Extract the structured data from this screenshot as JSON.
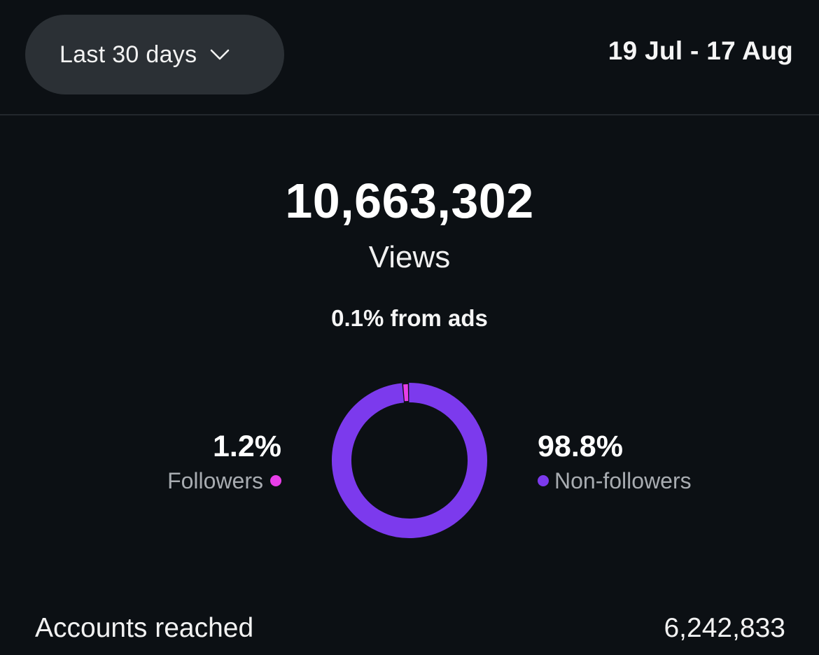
{
  "header": {
    "range_selector": "Last 30 days",
    "date_range": "19 Jul - 17 Aug"
  },
  "summary": {
    "views_total": "10,663,302",
    "views_label": "Views",
    "ads_note": "0.1% from ads"
  },
  "breakdown": {
    "followers": {
      "percent": "1.2%",
      "label": "Followers",
      "color": "#e83ee8"
    },
    "non_followers": {
      "percent": "98.8%",
      "label": "Non-followers",
      "color": "#7c3aed"
    }
  },
  "chart_data": {
    "type": "pie",
    "categories": [
      "Followers",
      "Non-followers"
    ],
    "values": [
      1.2,
      98.8
    ],
    "colors": [
      "#e83ee8",
      "#7c3aed"
    ],
    "title": "",
    "legend": "sides"
  },
  "metrics": {
    "accounts_reached_label": "Accounts reached",
    "accounts_reached_value": "6,242,833"
  }
}
